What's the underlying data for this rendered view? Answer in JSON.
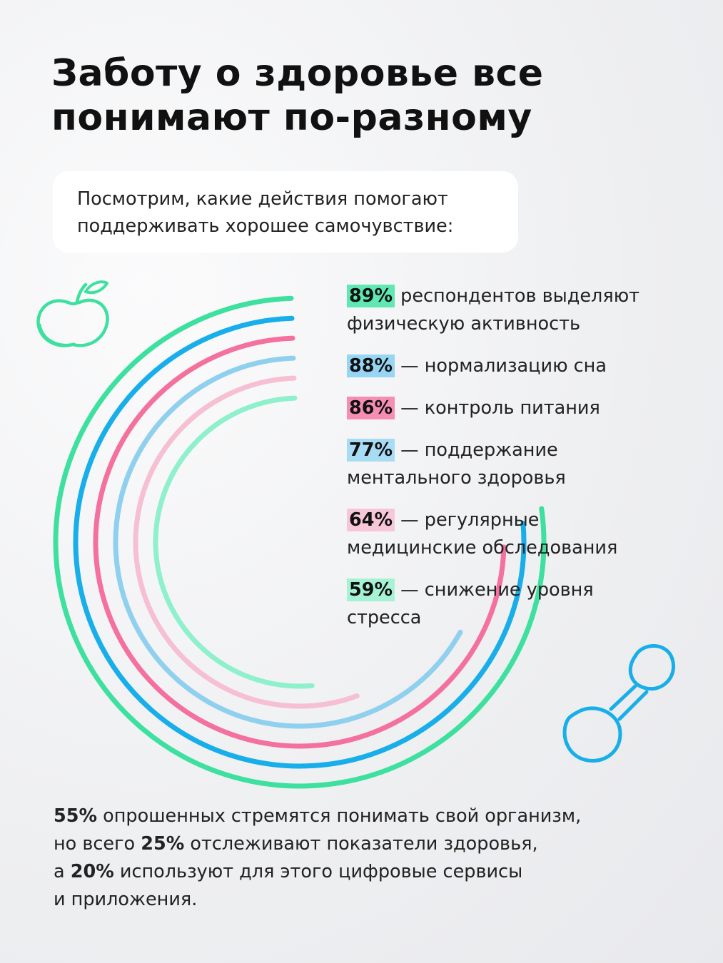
{
  "title_lines": [
    "Заботу о здоровье все",
    "понимают по-разному"
  ],
  "intro_lines": [
    "Посмотрим, какие действия помогают",
    "поддерживать хорошее самочувствие:"
  ],
  "colors": {
    "green": "#3ee0a0",
    "blue": "#17aeea",
    "pink": "#f4719e",
    "light_blue": "#8fd0ef",
    "light_pink": "#f6bfd2",
    "mint": "#8ff0cc"
  },
  "chart_data": {
    "type": "radial-bar",
    "unit": "%",
    "max": 100,
    "series": [
      {
        "pct_label": "89%",
        "value": 89,
        "color": "#3ee0a0",
        "badge_bg": "#5fe8b2",
        "lines": [
          "респондентов выделяют",
          "физическую активность"
        ]
      },
      {
        "pct_label": "88%",
        "value": 88,
        "color": "#17aeea",
        "badge_bg": "#96d5f4",
        "lines": [
          "— нормализацию сна"
        ]
      },
      {
        "pct_label": "86%",
        "value": 86,
        "color": "#f4719e",
        "badge_bg": "#f68db2",
        "lines": [
          "— контроль питания"
        ]
      },
      {
        "pct_label": "77%",
        "value": 77,
        "color": "#8fd0ef",
        "badge_bg": "#a8dcf5",
        "lines": [
          "— поддержание",
          "ментального здоровья"
        ]
      },
      {
        "pct_label": "64%",
        "value": 64,
        "color": "#f6bfd2",
        "badge_bg": "#f7c7d8",
        "lines": [
          "— регулярные",
          "медицинские обследования"
        ]
      },
      {
        "pct_label": "59%",
        "value": 59,
        "color": "#8ff0cc",
        "badge_bg": "#a6f2d4",
        "lines": [
          "— снижение уровня",
          "стресса"
        ]
      }
    ]
  },
  "footer": {
    "lines": [
      [
        {
          "b": "55%"
        },
        {
          "t": " опрошенных стремятся понимать свой организм,"
        }
      ],
      [
        {
          "t": "но всего "
        },
        {
          "b": "25%"
        },
        {
          "t": " отслеживают показатели здоровья,"
        }
      ],
      [
        {
          "t": "а "
        },
        {
          "b": "20%"
        },
        {
          "t": " используют для этого цифровые сервисы"
        }
      ],
      [
        {
          "t": "и приложения."
        }
      ]
    ]
  },
  "doodles": {
    "apple_icon": "apple-icon",
    "dumbbell_icon": "dumbbell-icon"
  }
}
